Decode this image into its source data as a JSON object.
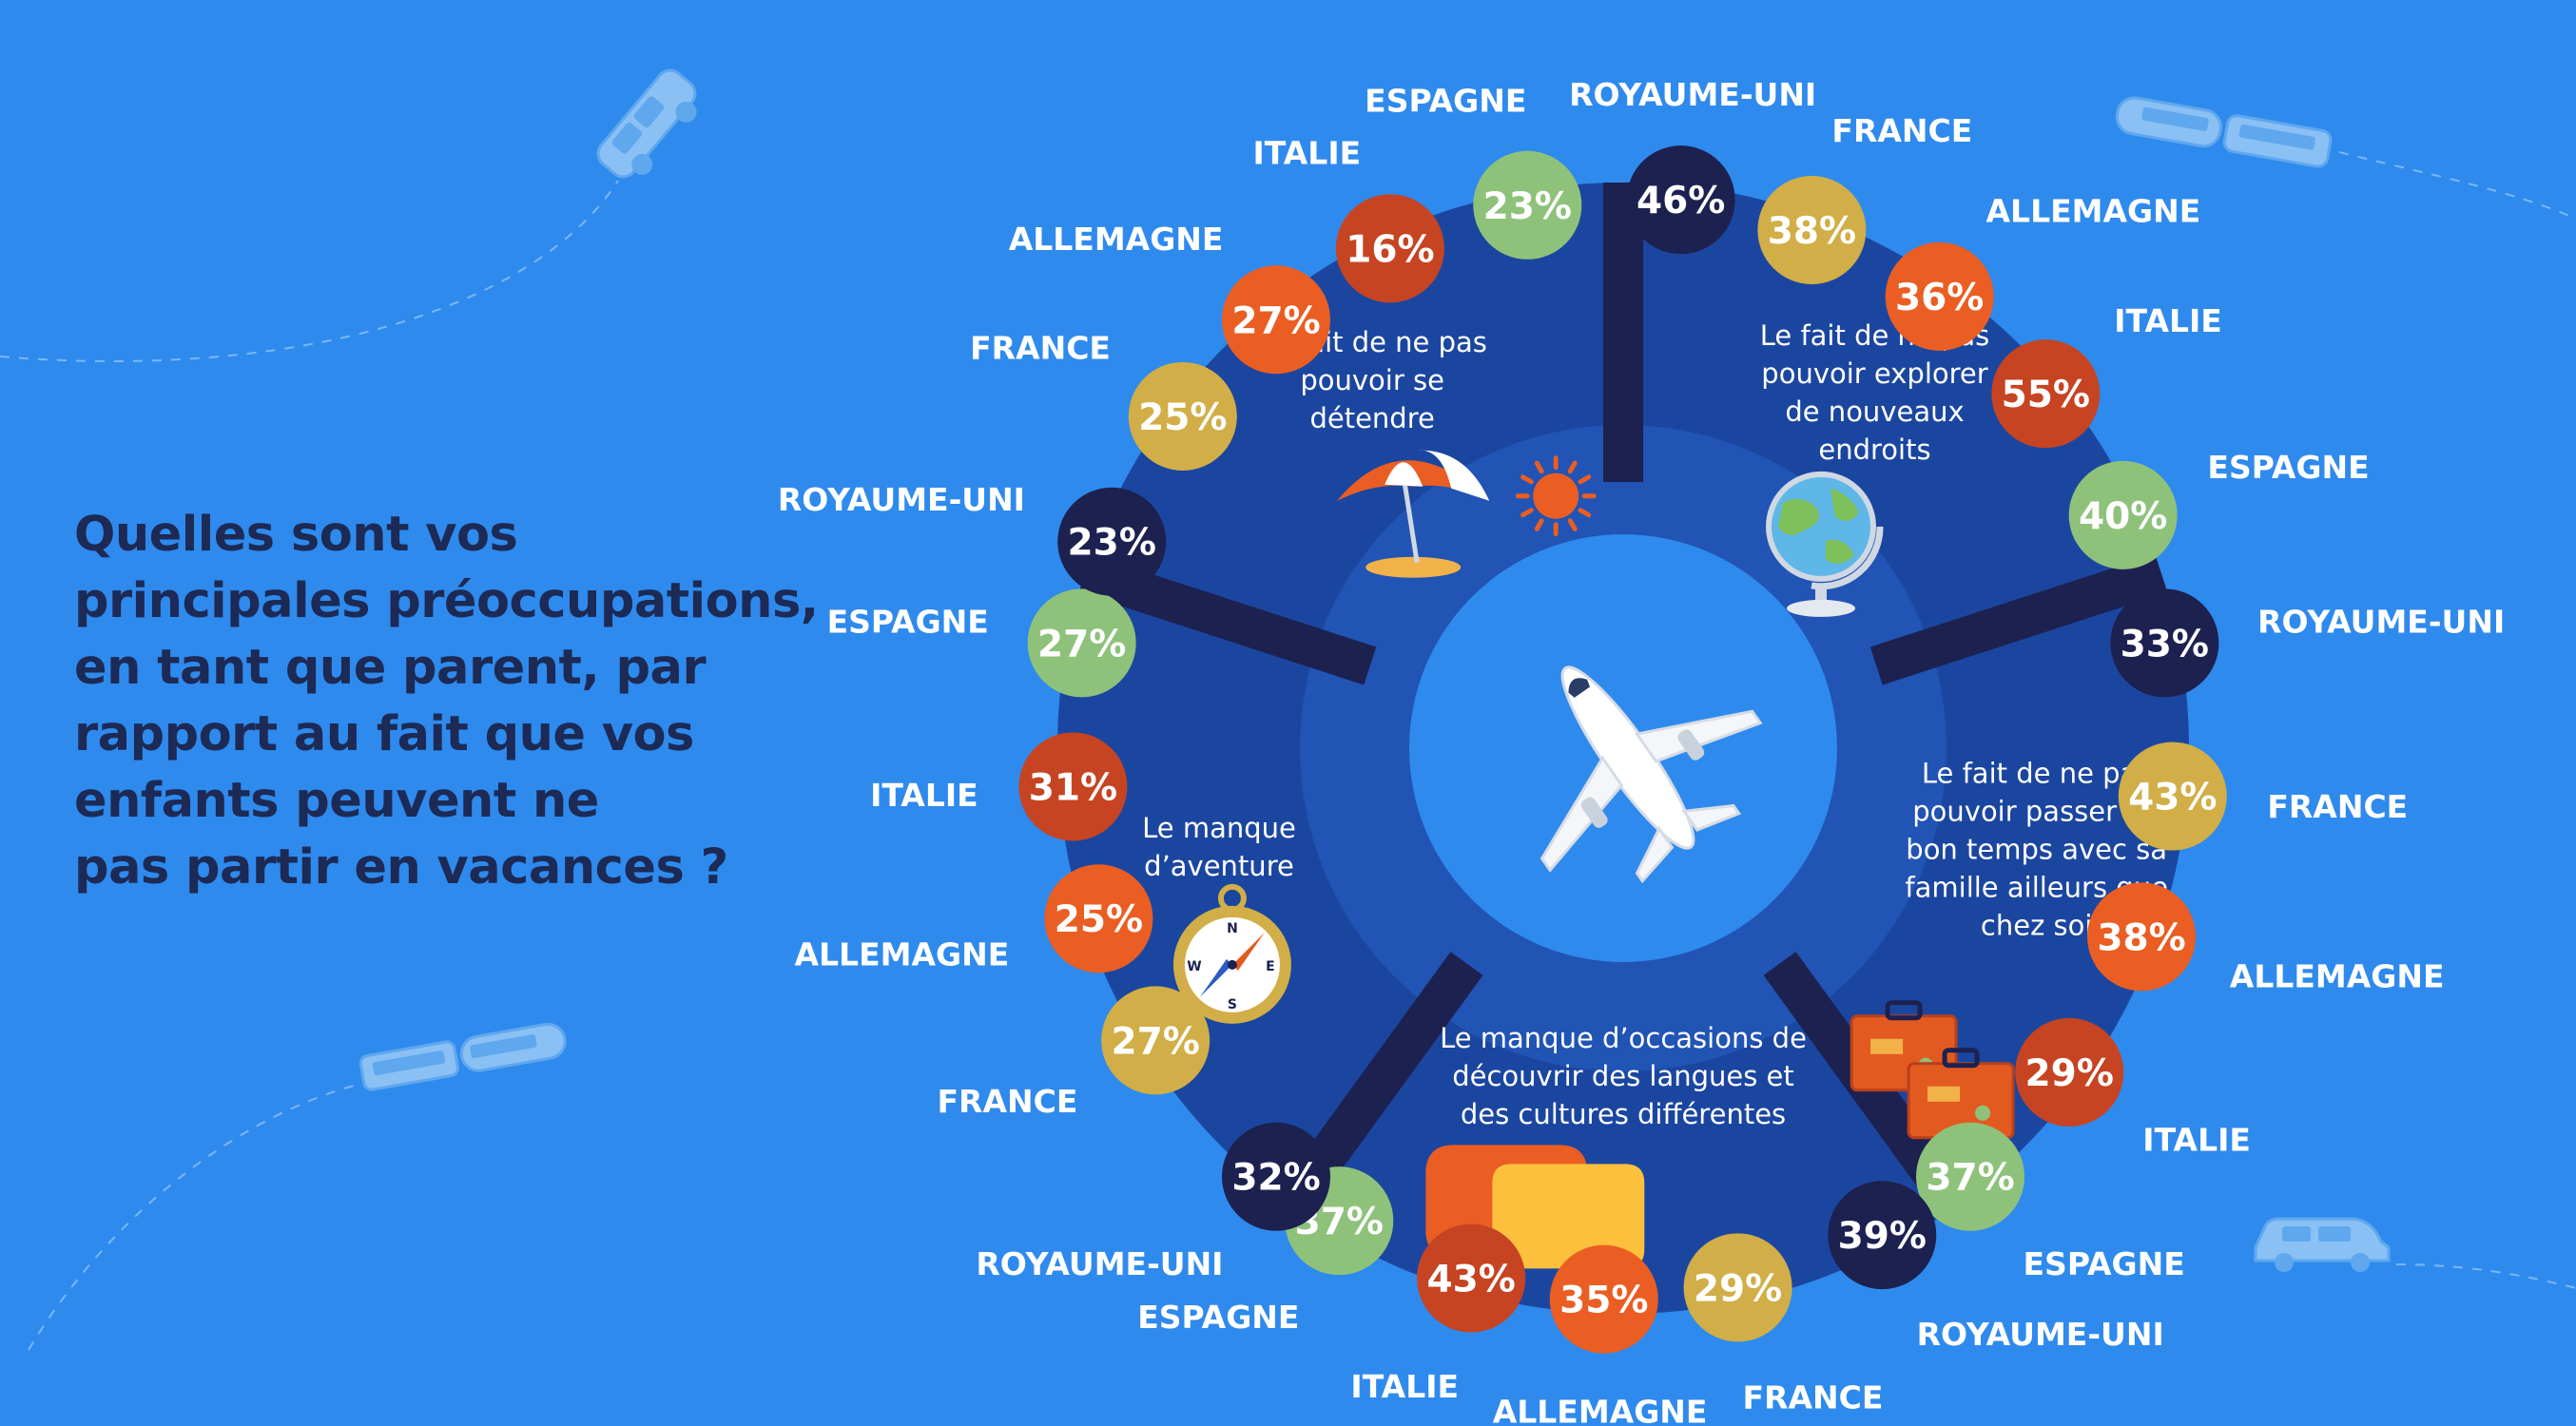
{
  "question_lines": [
    "Quelles sont vos",
    "principales préoccupations,",
    "en tant que parent, par",
    "rapport au fait que vos",
    "enfants peuvent ne",
    "pas partir en vacances ?"
  ],
  "colors": {
    "background": "#2f8aed",
    "sector": "#1b46a0",
    "ring_inner": "#2154b4",
    "hub": "#2f8aed",
    "divider": "#1c2150",
    "ROYAUME-UNI": "#1c2150",
    "FRANCE": "#d1ae47",
    "ALLEMAGNE": "#ea5e23",
    "ITALIE": "#c64422",
    "ESPAGNE": "#8ec27b"
  },
  "chart_data": {
    "type": "radial",
    "sectors": [
      {
        "label_lines": [
          "Le fait de ne pas",
          "pouvoir explorer",
          "de nouveaux",
          "endroits"
        ],
        "icon": "globe-icon",
        "values": [
          {
            "country": "ROYAUME-UNI",
            "value": 46
          },
          {
            "country": "FRANCE",
            "value": 38
          },
          {
            "country": "ALLEMAGNE",
            "value": 36
          },
          {
            "country": "ITALIE",
            "value": 55
          },
          {
            "country": "ESPAGNE",
            "value": 40
          }
        ]
      },
      {
        "label_lines": [
          "Le fait de ne pas",
          "pouvoir passer du",
          "bon temps avec sa",
          "famille ailleurs que",
          "chez soi"
        ],
        "icon": "suitcase-icon",
        "values": [
          {
            "country": "ROYAUME-UNI",
            "value": 33
          },
          {
            "country": "FRANCE",
            "value": 43
          },
          {
            "country": "ALLEMAGNE",
            "value": 38
          },
          {
            "country": "ITALIE",
            "value": 29
          },
          {
            "country": "ESPAGNE",
            "value": 37
          }
        ]
      },
      {
        "label_lines": [
          "Le manque d’occasions de",
          "découvrir des langues et",
          "des cultures différentes"
        ],
        "icon": "speech-bubbles-icon",
        "values": [
          {
            "country": "ROYAUME-UNI",
            "value": 39
          },
          {
            "country": "FRANCE",
            "value": 29
          },
          {
            "country": "ALLEMAGNE",
            "value": 35
          },
          {
            "country": "ITALIE",
            "value": 43
          },
          {
            "country": "ESPAGNE",
            "value": 37
          }
        ]
      },
      {
        "label_lines": [
          "Le manque",
          "d’aventure"
        ],
        "icon": "compass-icon",
        "values": [
          {
            "country": "ROYAUME-UNI",
            "value": 32
          },
          {
            "country": "FRANCE",
            "value": 27
          },
          {
            "country": "ALLEMAGNE",
            "value": 25
          },
          {
            "country": "ITALIE",
            "value": 31
          },
          {
            "country": "ESPAGNE",
            "value": 27
          }
        ]
      },
      {
        "label_lines": [
          "Le fait de ne pas",
          "pouvoir se",
          "détendre"
        ],
        "icon": "beach-umbrella-icon",
        "values": [
          {
            "country": "ROYAUME-UNI",
            "value": 23
          },
          {
            "country": "FRANCE",
            "value": 25
          },
          {
            "country": "ALLEMAGNE",
            "value": 27
          },
          {
            "country": "ITALIE",
            "value": 16
          },
          {
            "country": "ESPAGNE",
            "value": 23
          }
        ]
      }
    ]
  }
}
